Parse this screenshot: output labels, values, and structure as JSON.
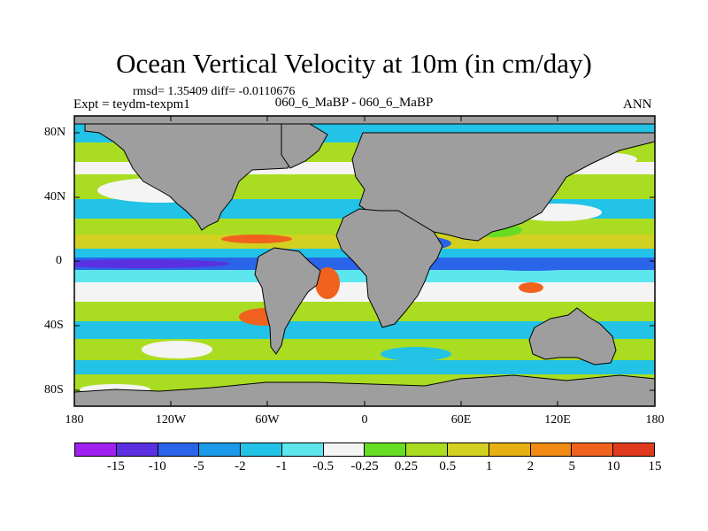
{
  "title": "Ocean Vertical Velocity at 10m (in cm/day)",
  "stats": "rmsd= 1.35409 diff= -0.0110676",
  "experiment": "Expt = teydm-texpm1",
  "case": "060_6_MaBP - 060_6_MaBP",
  "season": "ANN",
  "land_color": "#9e9e9e",
  "y_axis": {
    "labels": [
      "80N",
      "40N",
      "0",
      "40S",
      "80S"
    ],
    "values": [
      80,
      40,
      0,
      -40,
      -80
    ]
  },
  "x_axis": {
    "labels": [
      "180",
      "120W",
      "60W",
      "0",
      "60E",
      "120E",
      "180"
    ],
    "values": [
      -180,
      -120,
      -60,
      0,
      60,
      120,
      180
    ]
  },
  "colorbar": {
    "colors": [
      "#a020f0",
      "#5a30e0",
      "#2a64e8",
      "#1a9ae8",
      "#22c3e6",
      "#5ee6ee",
      "#f4f4f4",
      "#66dd22",
      "#aadd22",
      "#d2d020",
      "#e6b012",
      "#f08a14",
      "#f0621e",
      "#e03a1e"
    ],
    "labels": [
      "-15",
      "-10",
      "-5",
      "-2",
      "-1",
      "-0.5",
      "-0.25",
      "0.25",
      "0.5",
      "1",
      "2",
      "5",
      "10",
      "15"
    ]
  }
}
